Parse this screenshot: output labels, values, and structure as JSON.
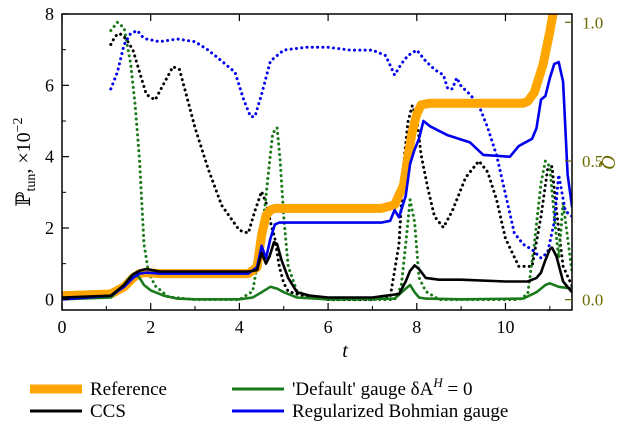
{
  "chart_data": {
    "type": "line",
    "xlabel": "t",
    "ylabel_left": {
      "main": "ℙ",
      "sub": "tun",
      "suffix": ", ×10",
      "sup": "−2"
    },
    "ylabel_right": "Q",
    "xlim": [
      0,
      11.5
    ],
    "ylim_left": [
      -0.3,
      8
    ],
    "ylim_right": [
      -0.03733,
      1.03
    ],
    "xticks": [
      0,
      2,
      4,
      6,
      8,
      10
    ],
    "yticks_left": [
      0,
      2,
      4,
      6,
      8
    ],
    "yticks_right": [
      0.0,
      0.5,
      1.0
    ],
    "colors": {
      "reference": "#ffa500",
      "ccs": "#000000",
      "default": "#1a7a1a",
      "bohm": "#0000ee",
      "right_axis": "#6b6b00"
    },
    "legend": {
      "placement": "bottom",
      "items": [
        {
          "key": "reference",
          "label": "Reference"
        },
        {
          "key": "ccs",
          "label": "CCS"
        },
        {
          "key": "default",
          "label": "'Default' gauge δA",
          "sup": "H",
          "suffix": " = 0"
        },
        {
          "key": "bohm",
          "label": "Regularized Bohmian gauge"
        }
      ]
    },
    "series": [
      {
        "key": "reference",
        "axis": "left",
        "style": "solid",
        "x": [
          0,
          1.1,
          1.4,
          1.6,
          1.75,
          1.9,
          2.2,
          3,
          4.2,
          4.4,
          4.5,
          4.6,
          4.7,
          4.8,
          5,
          6,
          7.2,
          7.5,
          7.7,
          7.8,
          7.9,
          8.0,
          8.1,
          8.3,
          9,
          10.4,
          10.5,
          10.65,
          10.85,
          11.0,
          11.1
        ],
        "y": [
          0.1,
          0.15,
          0.35,
          0.6,
          0.72,
          0.75,
          0.72,
          0.72,
          0.72,
          0.9,
          1.8,
          2.35,
          2.5,
          2.55,
          2.55,
          2.55,
          2.55,
          2.65,
          3.2,
          4.0,
          4.7,
          5.2,
          5.45,
          5.5,
          5.5,
          5.5,
          5.55,
          5.8,
          6.6,
          7.5,
          8.2
        ]
      },
      {
        "key": "ccs",
        "axis": "left",
        "style": "solid",
        "x": [
          0,
          1.1,
          1.4,
          1.6,
          1.75,
          1.9,
          2.2,
          3,
          4.2,
          4.4,
          4.5,
          4.6,
          4.68,
          4.78,
          4.85,
          4.95,
          5.1,
          5.3,
          5.6,
          6,
          7,
          7.6,
          7.75,
          7.85,
          7.95,
          8.05,
          8.2,
          8.5,
          9,
          10,
          10.5,
          10.7,
          10.8,
          10.9,
          11.0,
          11.05,
          11.15,
          11.3,
          11.5
        ],
        "y": [
          0.05,
          0.1,
          0.4,
          0.7,
          0.8,
          0.85,
          0.78,
          0.78,
          0.78,
          0.82,
          1.3,
          1.0,
          1.2,
          1.6,
          1.55,
          1.1,
          0.6,
          0.2,
          0.1,
          0.05,
          0.05,
          0.15,
          0.5,
          0.8,
          0.95,
          0.85,
          0.6,
          0.55,
          0.55,
          0.5,
          0.5,
          0.6,
          0.75,
          1.1,
          1.4,
          1.45,
          1.2,
          0.5,
          0.2
        ]
      },
      {
        "key": "default",
        "axis": "left",
        "style": "solid",
        "x": [
          0,
          1.1,
          1.4,
          1.55,
          1.65,
          1.75,
          1.85,
          2.0,
          2.3,
          2.6,
          3,
          4,
          4.3,
          4.5,
          4.7,
          4.85,
          5,
          5.3,
          6,
          7.5,
          7.75,
          7.85,
          7.95,
          8.05,
          8.2,
          9,
          10.4,
          10.7,
          10.9,
          11.0,
          11.2,
          11.5
        ],
        "y": [
          0,
          0.05,
          0.4,
          0.65,
          0.7,
          0.6,
          0.4,
          0.25,
          0.1,
          0.02,
          0,
          0,
          0.05,
          0.2,
          0.35,
          0.3,
          0.2,
          0.05,
          0,
          0.02,
          0.3,
          0.4,
          0.2,
          0.05,
          0.02,
          0,
          0.02,
          0.2,
          0.4,
          0.45,
          0.35,
          0.3
        ]
      },
      {
        "key": "bohm",
        "axis": "left",
        "style": "solid",
        "x": [
          0,
          1.1,
          1.4,
          1.6,
          1.75,
          1.9,
          2.2,
          3,
          4.2,
          4.4,
          4.5,
          4.6,
          4.7,
          4.8,
          4.9,
          5.0,
          5.2,
          6,
          7.2,
          7.4,
          7.5,
          7.6,
          7.75,
          7.85,
          7.95,
          8.05,
          8.15,
          8.3,
          8.7,
          9.2,
          9.5,
          10.1,
          10.3,
          10.6,
          10.7,
          10.8,
          10.9,
          11.0,
          11.1,
          11.2,
          11.3,
          11.4,
          11.5
        ],
        "y": [
          0,
          0.1,
          0.35,
          0.6,
          0.72,
          0.75,
          0.72,
          0.72,
          0.72,
          0.9,
          1.5,
          1.15,
          1.7,
          2.1,
          2.15,
          2.15,
          2.15,
          2.15,
          2.15,
          2.2,
          2.5,
          2.3,
          2.9,
          3.8,
          4.2,
          4.5,
          5.0,
          4.85,
          4.6,
          4.4,
          4.05,
          4.0,
          4.3,
          4.5,
          4.8,
          5.6,
          5.7,
          6.2,
          6.6,
          6.65,
          6.1,
          3.5,
          2.6
        ]
      },
      {
        "key": "ccs",
        "axis": "right",
        "style": "dotted",
        "x": [
          1.1,
          1.2,
          1.3,
          1.45,
          1.6,
          1.75,
          1.9,
          2.1,
          2.3,
          2.5,
          2.65,
          2.8,
          3.0,
          3.3,
          3.6,
          4.0,
          4.2,
          4.35,
          4.5,
          4.6,
          4.7,
          4.8,
          4.9,
          5.0,
          5.1,
          5.3,
          5.6,
          6,
          7,
          7.4,
          7.6,
          7.7,
          7.8,
          7.9,
          8.0,
          8.1,
          8.25,
          8.4,
          8.6,
          8.8,
          9.1,
          9.4,
          9.6,
          9.8,
          10.0,
          10.3,
          10.6,
          10.8,
          10.95,
          11.05,
          11.15,
          11.3,
          11.5
        ],
        "y": [
          0.92,
          0.95,
          0.96,
          0.94,
          0.9,
          0.82,
          0.74,
          0.72,
          0.78,
          0.84,
          0.83,
          0.74,
          0.62,
          0.47,
          0.34,
          0.25,
          0.24,
          0.32,
          0.39,
          0.35,
          0.28,
          0.22,
          0.12,
          0.06,
          0.03,
          0.02,
          0.01,
          0.0,
          0.0,
          0.01,
          0.2,
          0.48,
          0.64,
          0.7,
          0.65,
          0.52,
          0.4,
          0.3,
          0.26,
          0.32,
          0.44,
          0.5,
          0.46,
          0.36,
          0.22,
          0.12,
          0.12,
          0.3,
          0.47,
          0.48,
          0.32,
          0.12,
          0.05
        ]
      },
      {
        "key": "default",
        "axis": "right",
        "style": "dotted",
        "x": [
          1.1,
          1.25,
          1.4,
          1.55,
          1.65,
          1.75,
          1.85,
          1.95,
          2.1,
          2.4,
          3,
          4,
          4.3,
          4.5,
          4.65,
          4.75,
          4.85,
          4.92,
          5.0,
          5.1,
          5.3,
          5.6,
          6,
          7,
          7.5,
          7.65,
          7.75,
          7.85,
          7.95,
          8.05,
          8.2,
          8.5,
          9,
          10,
          10.3,
          10.5,
          10.65,
          10.8,
          10.9,
          11.0,
          11.1,
          11.2,
          11.3,
          11.5
        ],
        "y": [
          0.97,
          1.0,
          0.98,
          0.85,
          0.7,
          0.5,
          0.2,
          0.1,
          0.05,
          0.01,
          0.0,
          0.0,
          0.03,
          0.22,
          0.45,
          0.6,
          0.62,
          0.5,
          0.3,
          0.12,
          0.03,
          0.01,
          0.0,
          0.0,
          0.0,
          0.05,
          0.2,
          0.36,
          0.28,
          0.08,
          0.03,
          0.0,
          0.0,
          0.0,
          0.0,
          0.02,
          0.2,
          0.42,
          0.5,
          0.48,
          0.3,
          0.15,
          0.35,
          0.1
        ]
      },
      {
        "key": "bohm",
        "axis": "right",
        "style": "dotted",
        "x": [
          1.1,
          1.25,
          1.4,
          1.55,
          1.7,
          1.8,
          1.9,
          2.2,
          2.6,
          3.0,
          3.3,
          3.6,
          3.9,
          4.1,
          4.25,
          4.35,
          4.5,
          4.7,
          5.0,
          5.5,
          6.0,
          6.5,
          7.0,
          7.3,
          7.5,
          7.65,
          7.8,
          8.0,
          8.2,
          8.4,
          8.6,
          8.7,
          8.8,
          8.9,
          9.0,
          9.2,
          9.4,
          9.6,
          9.8,
          10.0,
          10.2,
          10.4,
          10.6,
          10.8,
          10.95,
          11.1,
          11.2,
          11.35,
          11.5
        ],
        "y": [
          0.76,
          0.82,
          0.92,
          0.96,
          0.97,
          0.95,
          0.94,
          0.93,
          0.94,
          0.93,
          0.9,
          0.86,
          0.82,
          0.72,
          0.66,
          0.66,
          0.74,
          0.86,
          0.9,
          0.91,
          0.91,
          0.9,
          0.9,
          0.88,
          0.81,
          0.85,
          0.88,
          0.9,
          0.86,
          0.83,
          0.81,
          0.76,
          0.76,
          0.8,
          0.77,
          0.74,
          0.7,
          0.62,
          0.52,
          0.38,
          0.24,
          0.2,
          0.18,
          0.15,
          0.17,
          0.28,
          0.45,
          0.32,
          0.3
        ]
      }
    ]
  }
}
